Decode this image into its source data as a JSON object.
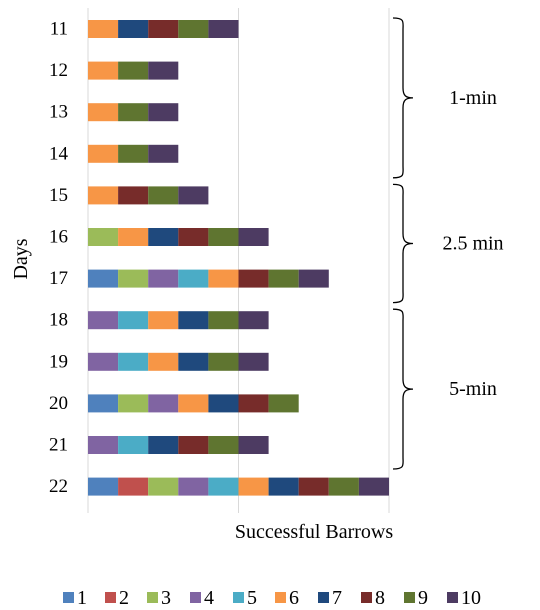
{
  "chart_data": {
    "type": "bar",
    "orientation": "horizontal",
    "stacked": true,
    "xlabel": "Successful Barrows",
    "ylabel": "Days",
    "xlim": [
      0,
      10
    ],
    "grid": true,
    "legend_position": "bottom",
    "categories": [
      "11",
      "12",
      "13",
      "14",
      "15",
      "16",
      "17",
      "18",
      "19",
      "20",
      "21",
      "22"
    ],
    "legend": [
      {
        "name": "1",
        "color": "#4f81bd"
      },
      {
        "name": "2",
        "color": "#c0504d"
      },
      {
        "name": "3",
        "color": "#9bbb59"
      },
      {
        "name": "4",
        "color": "#8064a2"
      },
      {
        "name": "5",
        "color": "#4bacc6"
      },
      {
        "name": "6",
        "color": "#f79646"
      },
      {
        "name": "7",
        "color": "#1f497d"
      },
      {
        "name": "8",
        "color": "#772c2a"
      },
      {
        "name": "9",
        "color": "#5f7530"
      },
      {
        "name": "10",
        "color": "#4d3b62"
      }
    ],
    "rows": [
      {
        "day": "11",
        "segments": [
          "6",
          "7",
          "8",
          "9",
          "10"
        ]
      },
      {
        "day": "12",
        "segments": [
          "6",
          "9",
          "10"
        ]
      },
      {
        "day": "13",
        "segments": [
          "6",
          "9",
          "10"
        ]
      },
      {
        "day": "14",
        "segments": [
          "6",
          "9",
          "10"
        ]
      },
      {
        "day": "15",
        "segments": [
          "6",
          "8",
          "9",
          "10"
        ]
      },
      {
        "day": "16",
        "segments": [
          "3",
          "6",
          "7",
          "8",
          "9",
          "10"
        ]
      },
      {
        "day": "17",
        "segments": [
          "1",
          "3",
          "4",
          "5",
          "6",
          "8",
          "9",
          "10"
        ]
      },
      {
        "day": "18",
        "segments": [
          "4",
          "5",
          "6",
          "7",
          "9",
          "10"
        ]
      },
      {
        "day": "19",
        "segments": [
          "4",
          "5",
          "6",
          "7",
          "9",
          "10"
        ]
      },
      {
        "day": "20",
        "segments": [
          "1",
          "3",
          "4",
          "6",
          "7",
          "8",
          "9"
        ]
      },
      {
        "day": "21",
        "segments": [
          "4",
          "5",
          "7",
          "8",
          "9",
          "10"
        ]
      },
      {
        "day": "22",
        "segments": [
          "1",
          "2",
          "3",
          "4",
          "5",
          "6",
          "7",
          "8",
          "9",
          "10"
        ]
      }
    ],
    "groups": [
      {
        "label": "1-min",
        "days": [
          "11",
          "14"
        ]
      },
      {
        "label": "2.5 min",
        "days": [
          "15",
          "17"
        ]
      },
      {
        "label": "5-min",
        "days": [
          "18",
          "21"
        ]
      }
    ]
  }
}
